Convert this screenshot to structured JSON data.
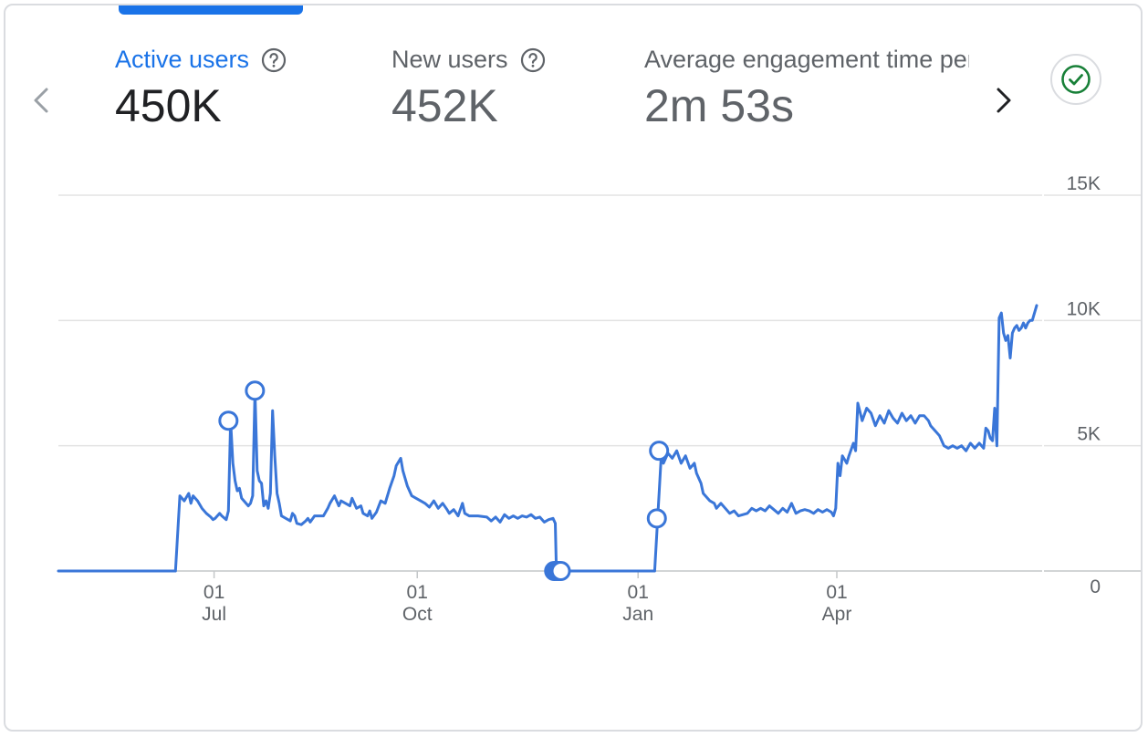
{
  "metrics": [
    {
      "label": "Active users",
      "value": "450K",
      "active": true
    },
    {
      "label": "New users",
      "value": "452K",
      "active": false
    },
    {
      "label": "Average engagement time per active user",
      "value": "2m 53s",
      "active": false
    }
  ],
  "icons": {
    "help": "help-circle-icon",
    "prev": "chevron-left-icon",
    "next": "chevron-right-icon",
    "status": "check-circle-icon"
  },
  "colors": {
    "accent": "#1a73e8",
    "line": "#3a76d8",
    "status_green": "#188038"
  },
  "chart_data": {
    "type": "line",
    "title": "",
    "xlabel": "",
    "ylabel": "",
    "ylim": [
      0,
      15000
    ],
    "grid": true,
    "y_ticks": [
      "15K",
      "10K",
      "5K",
      "0"
    ],
    "y_tick_values": [
      15000,
      10000,
      5000,
      0
    ],
    "x_ticks": [
      {
        "day": "01",
        "month": "Jul",
        "x": 0.5
      },
      {
        "day": "01",
        "month": "Oct",
        "x": 92.5
      },
      {
        "day": "01",
        "month": "Jan",
        "x": 192.5
      },
      {
        "day": "01",
        "month": "Apr",
        "x": 282.5
      }
    ],
    "x_range": [
      -70,
      373
    ],
    "series": [
      {
        "name": "",
        "color": "#3a76d8",
        "points": [
          [
            -70,
            0
          ],
          [
            -17,
            0
          ],
          [
            -15,
            3000
          ],
          [
            -13,
            2800
          ],
          [
            -11,
            3100
          ],
          [
            -10,
            2700
          ],
          [
            -9,
            3000
          ],
          [
            -7,
            2800
          ],
          [
            -5,
            2500
          ],
          [
            -3,
            2300
          ],
          [
            -1,
            2150
          ],
          [
            0,
            2050
          ],
          [
            1,
            2100
          ],
          [
            3,
            2300
          ],
          [
            4,
            2200
          ],
          [
            6,
            2050
          ],
          [
            7,
            2400
          ],
          [
            8,
            6000
          ],
          [
            9,
            4300
          ],
          [
            10,
            3600
          ],
          [
            11,
            3200
          ],
          [
            12,
            3300
          ],
          [
            13,
            2900
          ],
          [
            14,
            2800
          ],
          [
            16,
            2600
          ],
          [
            17,
            2700
          ],
          [
            18,
            3000
          ],
          [
            19,
            7200
          ],
          [
            20,
            4000
          ],
          [
            21,
            3600
          ],
          [
            22,
            3500
          ],
          [
            23,
            2600
          ],
          [
            24,
            2800
          ],
          [
            25,
            2500
          ],
          [
            26,
            3100
          ],
          [
            27,
            6400
          ],
          [
            28,
            4600
          ],
          [
            29,
            3100
          ],
          [
            30,
            2700
          ],
          [
            31,
            2200
          ],
          [
            33,
            2100
          ],
          [
            35,
            2000
          ],
          [
            36,
            2300
          ],
          [
            37,
            2200
          ],
          [
            38,
            1900
          ],
          [
            40,
            1850
          ],
          [
            42,
            2000
          ],
          [
            43,
            2100
          ],
          [
            44,
            1950
          ],
          [
            46,
            2200
          ],
          [
            50,
            2200
          ],
          [
            52,
            2500
          ],
          [
            53,
            2700
          ],
          [
            55,
            3000
          ],
          [
            56,
            2800
          ],
          [
            57,
            2600
          ],
          [
            58,
            2800
          ],
          [
            60,
            2700
          ],
          [
            62,
            2600
          ],
          [
            63,
            2900
          ],
          [
            65,
            2500
          ],
          [
            67,
            2600
          ],
          [
            68,
            2300
          ],
          [
            70,
            2200
          ],
          [
            71,
            2400
          ],
          [
            72,
            2100
          ],
          [
            74,
            2350
          ],
          [
            76,
            2800
          ],
          [
            78,
            2700
          ],
          [
            80,
            3300
          ],
          [
            82,
            3800
          ],
          [
            83,
            4200
          ],
          [
            85,
            4500
          ],
          [
            86,
            4000
          ],
          [
            88,
            3400
          ],
          [
            90,
            3000
          ],
          [
            92,
            2900
          ],
          [
            94,
            2800
          ],
          [
            96,
            2700
          ],
          [
            98,
            2550
          ],
          [
            100,
            2800
          ],
          [
            102,
            2500
          ],
          [
            104,
            2700
          ],
          [
            106,
            2450
          ],
          [
            107,
            2300
          ],
          [
            109,
            2450
          ],
          [
            111,
            2200
          ],
          [
            113,
            2700
          ],
          [
            114,
            2300
          ],
          [
            116,
            2200
          ],
          [
            120,
            2200
          ],
          [
            124,
            2150
          ],
          [
            126,
            2000
          ],
          [
            128,
            2150
          ],
          [
            130,
            1950
          ],
          [
            132,
            2250
          ],
          [
            134,
            2100
          ],
          [
            136,
            2200
          ],
          [
            138,
            2100
          ],
          [
            140,
            2200
          ],
          [
            142,
            2150
          ],
          [
            144,
            2250
          ],
          [
            146,
            2100
          ],
          [
            148,
            2150
          ],
          [
            150,
            1950
          ],
          [
            152,
            2050
          ],
          [
            154,
            2100
          ],
          [
            155,
            1900
          ],
          [
            155.5,
            0
          ],
          [
            158,
            0
          ],
          [
            200,
            0
          ],
          [
            203,
            4600
          ],
          [
            204,
            4300
          ],
          [
            206,
            4700
          ],
          [
            208,
            4500
          ],
          [
            210,
            4800
          ],
          [
            212,
            4300
          ],
          [
            214,
            4600
          ],
          [
            216,
            4100
          ],
          [
            218,
            4300
          ],
          [
            219,
            3900
          ],
          [
            221,
            3500
          ],
          [
            222,
            3100
          ],
          [
            223,
            3000
          ],
          [
            225,
            2800
          ],
          [
            227,
            2700
          ],
          [
            228,
            2500
          ],
          [
            230,
            2700
          ],
          [
            232,
            2500
          ],
          [
            234,
            2300
          ],
          [
            236,
            2400
          ],
          [
            238,
            2200
          ],
          [
            240,
            2250
          ],
          [
            242,
            2300
          ],
          [
            244,
            2500
          ],
          [
            246,
            2400
          ],
          [
            248,
            2500
          ],
          [
            250,
            2400
          ],
          [
            252,
            2600
          ],
          [
            254,
            2450
          ],
          [
            256,
            2300
          ],
          [
            258,
            2500
          ],
          [
            260,
            2350
          ],
          [
            262,
            2700
          ],
          [
            264,
            2300
          ],
          [
            266,
            2400
          ],
          [
            268,
            2450
          ],
          [
            270,
            2400
          ],
          [
            272,
            2300
          ],
          [
            274,
            2450
          ],
          [
            276,
            2350
          ],
          [
            278,
            2450
          ],
          [
            280,
            2350
          ],
          [
            281,
            2200
          ],
          [
            282,
            2500
          ],
          [
            283,
            4300
          ],
          [
            284,
            3800
          ],
          [
            285,
            4600
          ],
          [
            287,
            4300
          ],
          [
            288,
            4600
          ],
          [
            290,
            5100
          ],
          [
            291,
            4800
          ],
          [
            292,
            6700
          ],
          [
            294,
            6000
          ],
          [
            296,
            6500
          ],
          [
            298,
            6300
          ],
          [
            300,
            5800
          ],
          [
            302,
            6200
          ],
          [
            304,
            5900
          ],
          [
            306,
            6400
          ],
          [
            308,
            6100
          ],
          [
            310,
            5900
          ],
          [
            312,
            6300
          ],
          [
            314,
            6000
          ],
          [
            316,
            6200
          ],
          [
            318,
            5900
          ],
          [
            320,
            6200
          ],
          [
            322,
            6200
          ],
          [
            324,
            6000
          ],
          [
            325,
            5800
          ],
          [
            327,
            5600
          ],
          [
            329,
            5400
          ],
          [
            331,
            5000
          ],
          [
            333,
            4900
          ],
          [
            335,
            5000
          ],
          [
            337,
            4900
          ],
          [
            339,
            5000
          ],
          [
            341,
            4800
          ],
          [
            343,
            5100
          ],
          [
            345,
            4900
          ],
          [
            347,
            5100
          ],
          [
            349,
            4900
          ],
          [
            350,
            5700
          ],
          [
            351,
            5600
          ],
          [
            352,
            5300
          ],
          [
            353,
            5200
          ],
          [
            354,
            6500
          ],
          [
            355,
            5000
          ],
          [
            356,
            10100
          ],
          [
            357,
            10300
          ],
          [
            358,
            9500
          ],
          [
            359,
            9200
          ],
          [
            360,
            9400
          ],
          [
            361,
            8500
          ],
          [
            362,
            9500
          ],
          [
            363,
            9700
          ],
          [
            364,
            9800
          ],
          [
            365,
            9600
          ],
          [
            366,
            9700
          ],
          [
            367,
            9900
          ],
          [
            368,
            9700
          ],
          [
            369,
            9900
          ],
          [
            370,
            10000
          ],
          [
            371,
            10000
          ],
          [
            373,
            10600
          ]
        ]
      }
    ],
    "annotations": [
      {
        "x": 7,
        "y": 6000
      },
      {
        "x": 19,
        "y": 7200
      },
      {
        "x": 154.5,
        "y": 0
      },
      {
        "x": 155.5,
        "y": 0
      },
      {
        "x": 156.5,
        "y": 0
      },
      {
        "x": 157.5,
        "y": 0
      },
      {
        "x": 201,
        "y": 2100
      },
      {
        "x": 202,
        "y": 4800
      }
    ]
  }
}
